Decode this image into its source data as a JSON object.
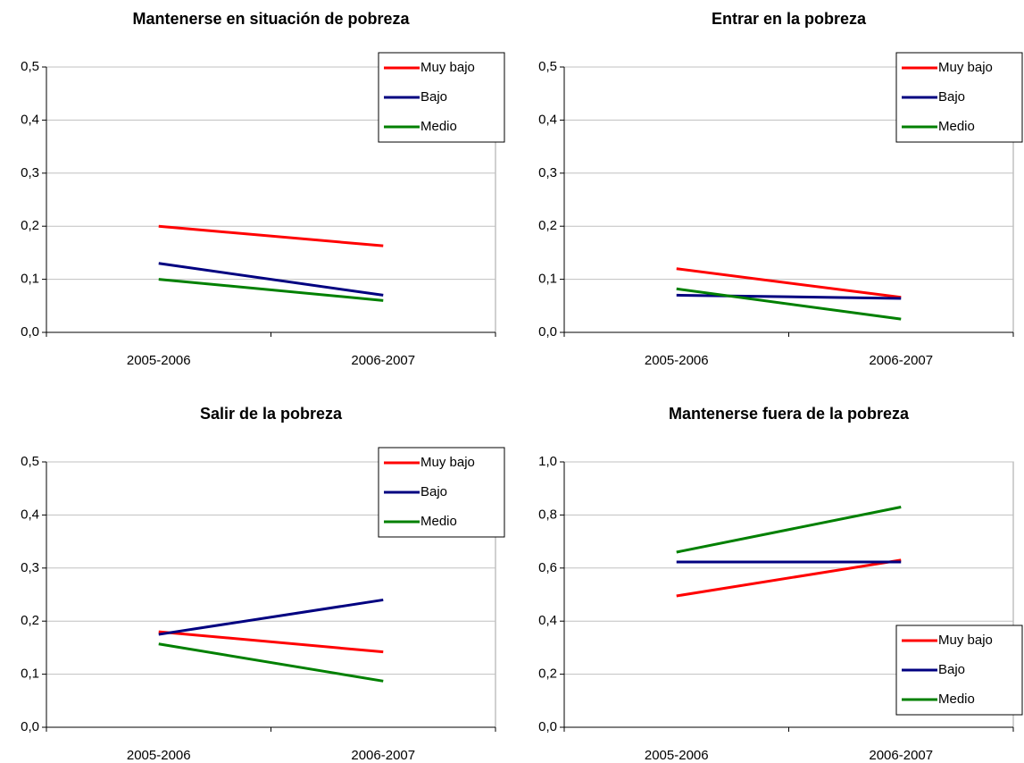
{
  "chart_data": [
    {
      "type": "line",
      "title": "Mantenerse en situación de pobreza",
      "categories": [
        "2005-2006",
        "2006-2007"
      ],
      "series": [
        {
          "name": "Muy bajo",
          "color": "#ff0000",
          "values": [
            0.2,
            0.163
          ]
        },
        {
          "name": "Bajo",
          "color": "#000080",
          "values": [
            0.13,
            0.07
          ]
        },
        {
          "name": "Medio",
          "color": "#008000",
          "values": [
            0.1,
            0.06
          ]
        }
      ],
      "ylim": [
        0,
        0.5
      ],
      "yticks": [
        {
          "value": 0,
          "label": "0,0"
        },
        {
          "value": 0.1,
          "label": "0,1"
        },
        {
          "value": 0.2,
          "label": "0,2"
        },
        {
          "value": 0.3,
          "label": "0,3"
        },
        {
          "value": 0.4,
          "label": "0,4"
        },
        {
          "value": 0.5,
          "label": "0,5"
        }
      ],
      "grid": true,
      "legend": "upper-right"
    },
    {
      "type": "line",
      "title": "Entrar en la pobreza",
      "categories": [
        "2005-2006",
        "2006-2007"
      ],
      "series": [
        {
          "name": "Muy bajo",
          "color": "#ff0000",
          "values": [
            0.12,
            0.066
          ]
        },
        {
          "name": "Bajo",
          "color": "#000080",
          "values": [
            0.07,
            0.064
          ]
        },
        {
          "name": "Medio",
          "color": "#008000",
          "values": [
            0.082,
            0.025
          ]
        }
      ],
      "ylim": [
        0,
        0.5
      ],
      "yticks": [
        {
          "value": 0,
          "label": "0,0"
        },
        {
          "value": 0.1,
          "label": "0,1"
        },
        {
          "value": 0.2,
          "label": "0,2"
        },
        {
          "value": 0.3,
          "label": "0,3"
        },
        {
          "value": 0.4,
          "label": "0,4"
        },
        {
          "value": 0.5,
          "label": "0,5"
        }
      ],
      "grid": true,
      "legend": "upper-right"
    },
    {
      "type": "line",
      "title": "Salir de la pobreza",
      "categories": [
        "2005-2006",
        "2006-2007"
      ],
      "series": [
        {
          "name": "Muy bajo",
          "color": "#ff0000",
          "values": [
            0.18,
            0.142
          ]
        },
        {
          "name": "Bajo",
          "color": "#000080",
          "values": [
            0.175,
            0.24
          ]
        },
        {
          "name": "Medio",
          "color": "#008000",
          "values": [
            0.157,
            0.087
          ]
        }
      ],
      "ylim": [
        0,
        0.5
      ],
      "yticks": [
        {
          "value": 0,
          "label": "0,0"
        },
        {
          "value": 0.1,
          "label": "0,1"
        },
        {
          "value": 0.2,
          "label": "0,2"
        },
        {
          "value": 0.3,
          "label": "0,3"
        },
        {
          "value": 0.4,
          "label": "0,4"
        },
        {
          "value": 0.5,
          "label": "0,5"
        }
      ],
      "grid": true,
      "legend": "upper-right"
    },
    {
      "type": "line",
      "title": "Mantenerse fuera de la pobreza",
      "categories": [
        "2005-2006",
        "2006-2007"
      ],
      "series": [
        {
          "name": "Muy bajo",
          "color": "#ff0000",
          "values": [
            0.495,
            0.63
          ]
        },
        {
          "name": "Bajo",
          "color": "#000080",
          "values": [
            0.623,
            0.623
          ]
        },
        {
          "name": "Medio",
          "color": "#008000",
          "values": [
            0.66,
            0.83
          ]
        }
      ],
      "ylim": [
        0,
        1
      ],
      "yticks": [
        {
          "value": 0,
          "label": "0,0"
        },
        {
          "value": 0.2,
          "label": "0,2"
        },
        {
          "value": 0.4,
          "label": "0,4"
        },
        {
          "value": 0.6,
          "label": "0,6"
        },
        {
          "value": 0.8,
          "label": "0,8"
        },
        {
          "value": 1,
          "label": "1,0"
        }
      ],
      "grid": true,
      "legend": "lower-right"
    }
  ]
}
